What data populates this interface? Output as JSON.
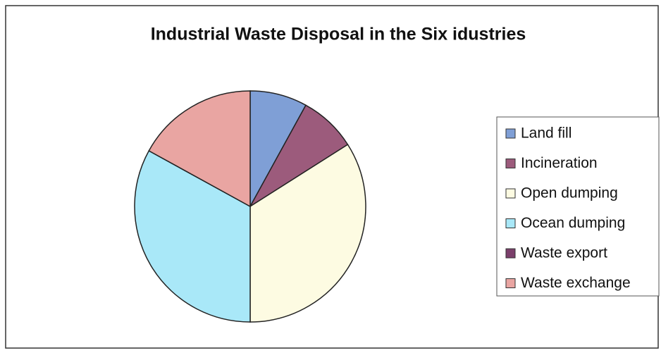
{
  "chart_data": {
    "type": "pie",
    "title": "Industrial Waste Disposal in the Six idustries",
    "categories": [
      "Land fill",
      "Incineration",
      "Open dumping",
      "Ocean dumping",
      "Waste export",
      "Waste exchange"
    ],
    "values": [
      8,
      8,
      34,
      33,
      0,
      17
    ],
    "colors": [
      "#7f9fd6",
      "#9c5b7c",
      "#fdfbe2",
      "#a9e8f8",
      "#7b3f6b",
      "#e9a5a2"
    ],
    "legend": "right"
  }
}
